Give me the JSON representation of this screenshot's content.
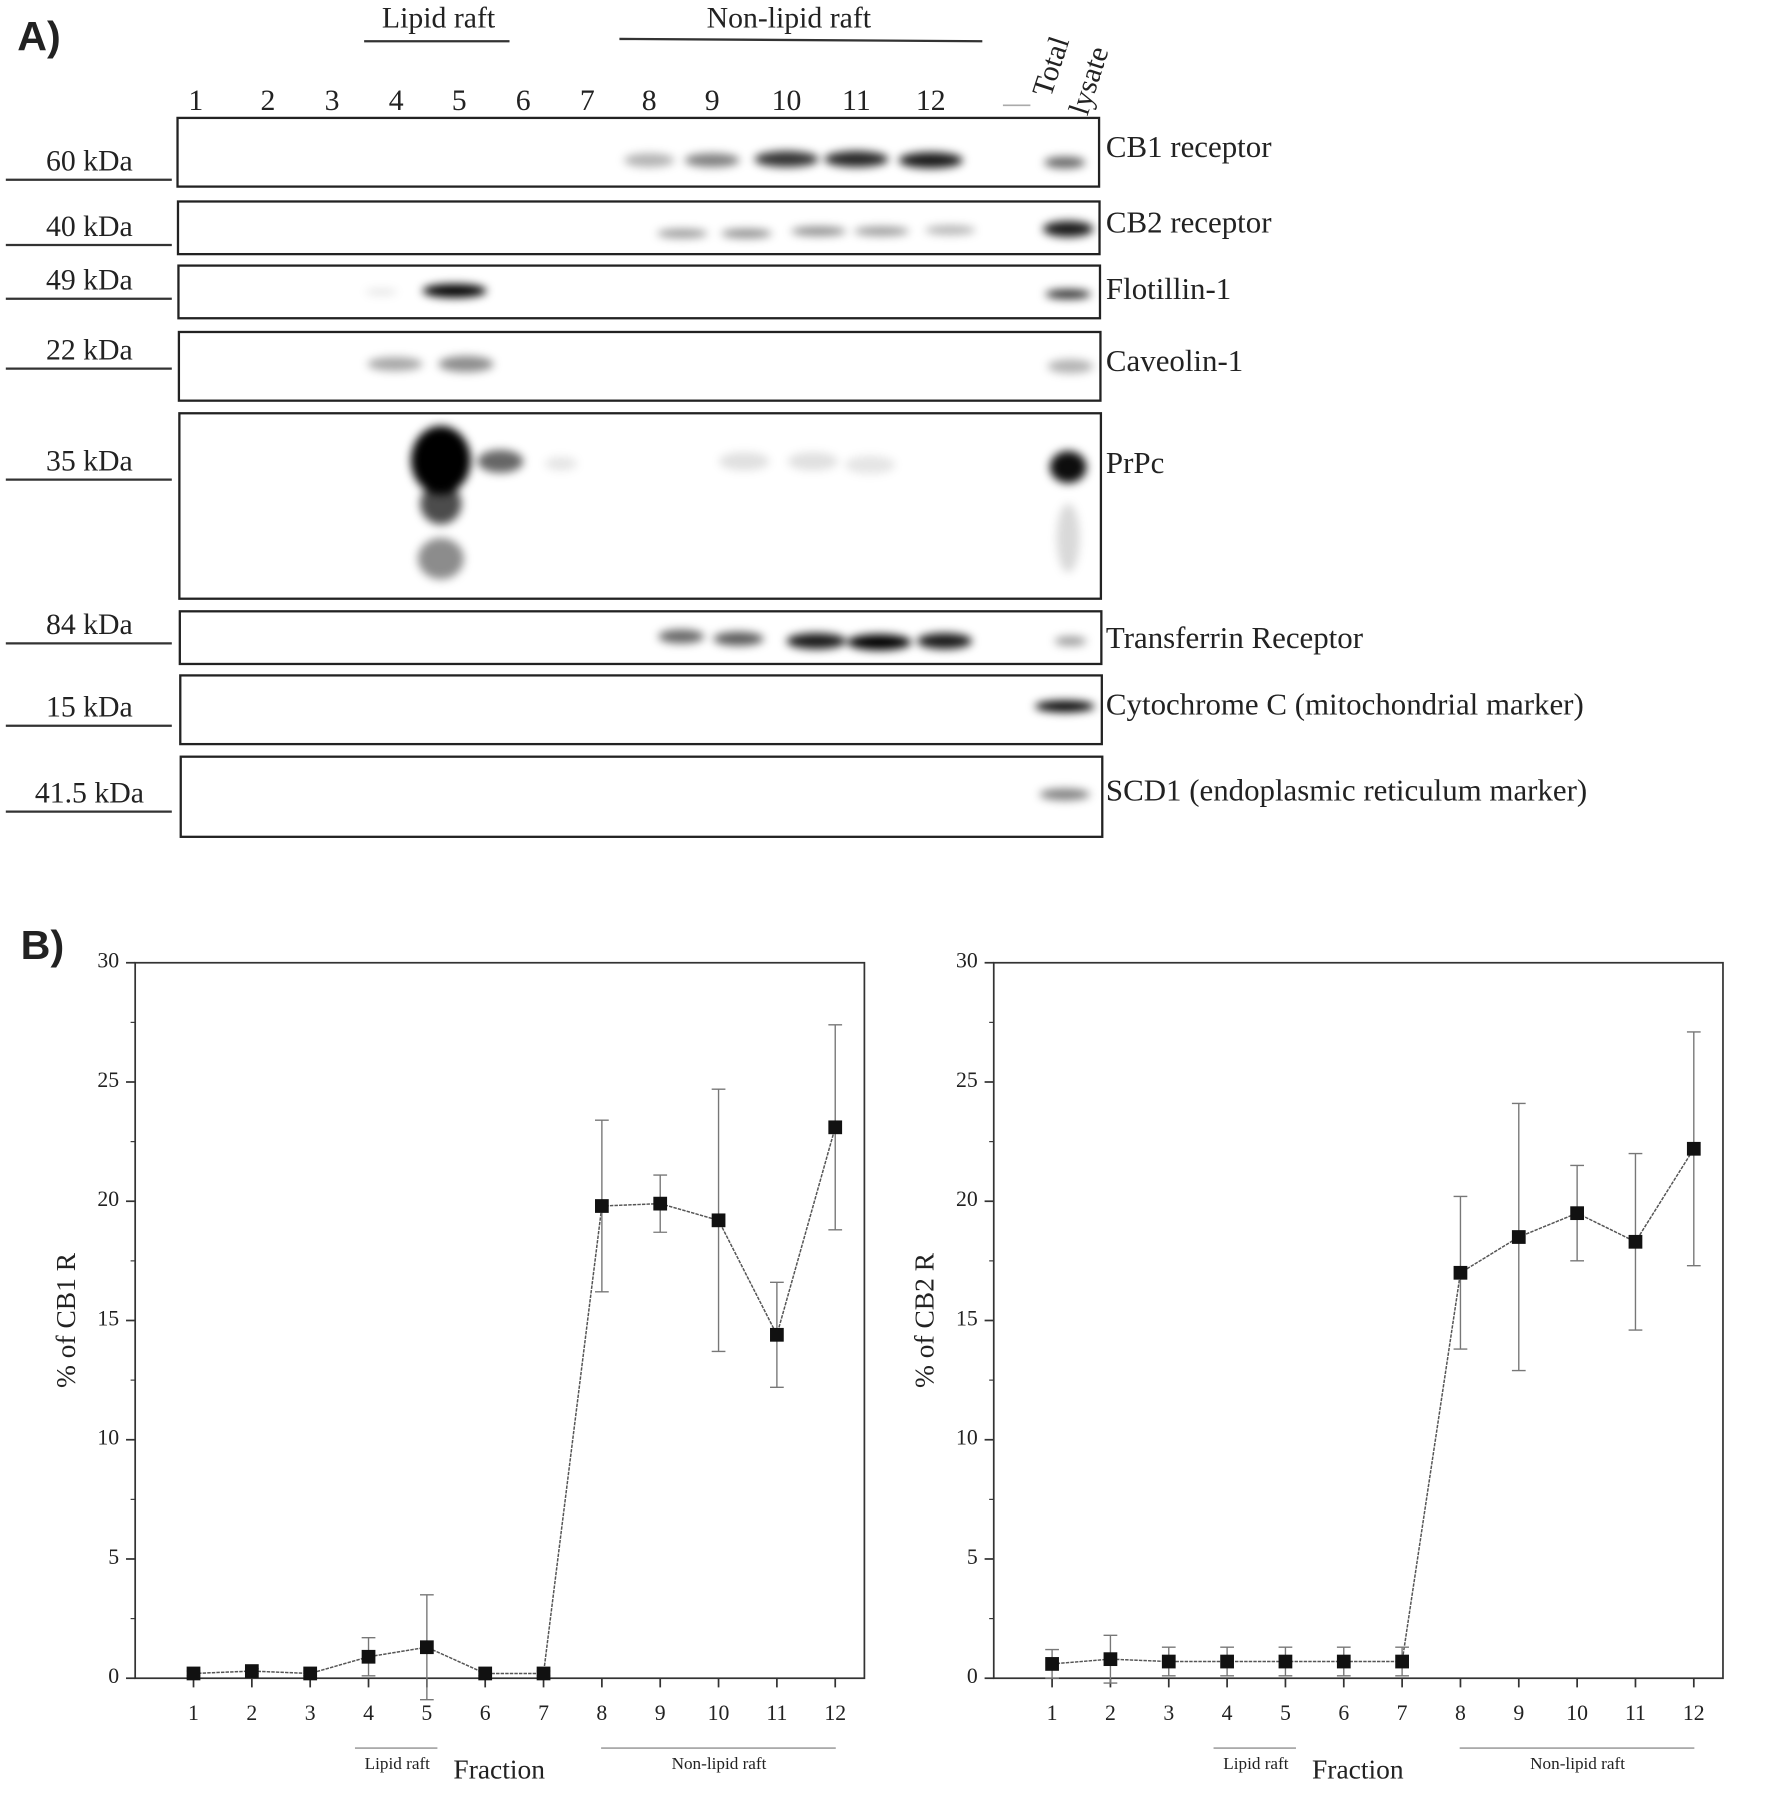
{
  "panel_labels": [
    "A)",
    "B)"
  ],
  "blot": {
    "groups": [
      "Lipid raft",
      "Non-lipid raft"
    ],
    "lanes": [
      "1",
      "2",
      "3",
      "4",
      "5",
      "6",
      "7",
      "8",
      "9",
      "10",
      "11",
      "12"
    ],
    "total_lysate": [
      "Total",
      "lysate"
    ],
    "rows": [
      {
        "marker": "60 kDa",
        "name": "CB1 receptor"
      },
      {
        "marker": "40 kDa",
        "name": "CB2 receptor"
      },
      {
        "marker": "49 kDa",
        "name": "Flotillin-1"
      },
      {
        "marker": "22 kDa",
        "name": "Caveolin-1"
      },
      {
        "marker": "35 kDa",
        "name": "PrPc"
      },
      {
        "marker": "84 kDa",
        "name": "Transferrin Receptor"
      },
      {
        "marker": "15 kDa",
        "name": "Cytochrome C (mitochondrial marker)"
      },
      {
        "marker": "41.5 kDa",
        "name": "SCD1 (endoplasmic reticulum marker)"
      }
    ]
  },
  "chart_data": [
    {
      "type": "line",
      "y_label": "% of CB1 R",
      "x_label": "Fraction",
      "annotations": [
        "Lipid raft",
        "Non-lipid raft"
      ],
      "x": [
        1,
        2,
        3,
        4,
        5,
        6,
        7,
        8,
        9,
        10,
        11,
        12
      ],
      "xlim": [
        0,
        12.5
      ],
      "xticks": [
        1,
        2,
        3,
        4,
        5,
        6,
        7,
        8,
        9,
        10,
        11,
        12
      ],
      "ylim": [
        0,
        30
      ],
      "yticks": [
        0,
        5,
        10,
        15,
        20,
        25,
        30
      ],
      "series": [
        {
          "color": "#111111",
          "values": [
            0.2,
            0.3,
            0.2,
            0.9,
            1.3,
            0.2,
            0.2,
            19.8,
            19.9,
            19.2,
            14.4,
            23.1
          ],
          "errors": [
            0.1,
            0.1,
            0.1,
            0.8,
            2.2,
            0.1,
            0.1,
            3.6,
            1.2,
            5.5,
            2.2,
            4.3
          ]
        }
      ]
    },
    {
      "type": "line",
      "y_label": "% of CB2 R",
      "x_label": "Fraction",
      "annotations": [
        "Lipid raft",
        "Non-lipid raft"
      ],
      "x": [
        1,
        2,
        3,
        4,
        5,
        6,
        7,
        8,
        9,
        10,
        11,
        12
      ],
      "xlim": [
        0,
        12.5
      ],
      "xticks": [
        1,
        2,
        3,
        4,
        5,
        6,
        7,
        8,
        9,
        10,
        11,
        12
      ],
      "ylim": [
        0,
        30
      ],
      "yticks": [
        0,
        5,
        10,
        15,
        20,
        25,
        30
      ],
      "series": [
        {
          "color": "#111111",
          "values": [
            0.6,
            0.8,
            0.7,
            0.7,
            0.7,
            0.7,
            0.7,
            17.0,
            18.5,
            19.5,
            18.3,
            22.2
          ],
          "errors": [
            0.6,
            1.0,
            0.6,
            0.6,
            0.6,
            0.6,
            0.6,
            3.2,
            5.6,
            2.0,
            3.7,
            4.9
          ]
        }
      ]
    }
  ]
}
